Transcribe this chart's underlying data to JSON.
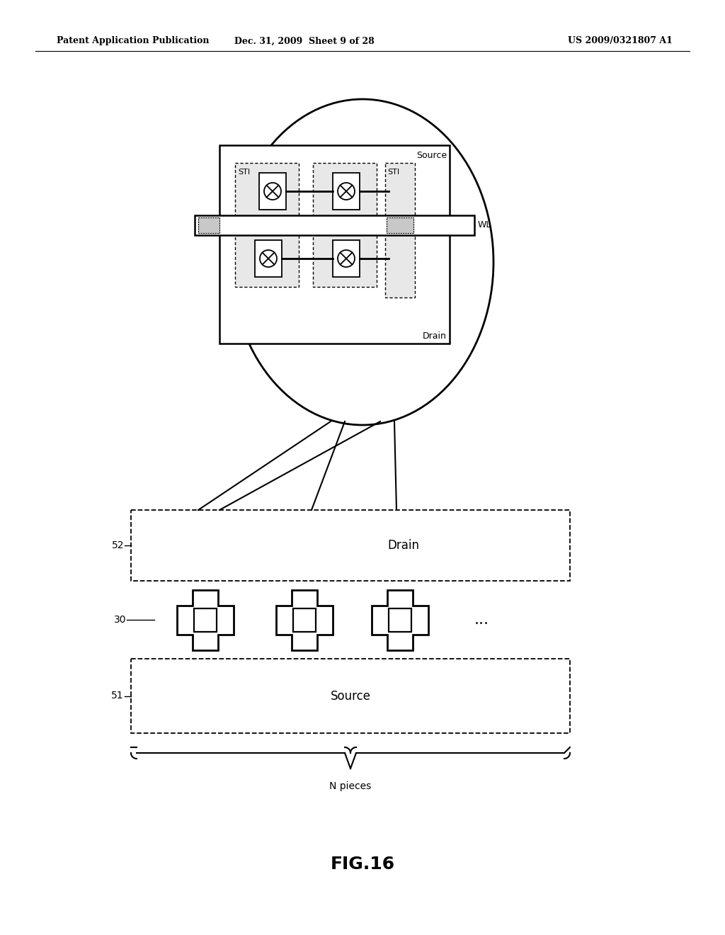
{
  "bg_color": "#ffffff",
  "header_left": "Patent Application Publication",
  "header_mid": "Dec. 31, 2009  Sheet 9 of 28",
  "header_right": "US 2009/0321807 A1",
  "fig_label": "FIG.16",
  "label_source_in_circle": "Source",
  "label_drain_in_circle": "Drain",
  "label_STI_left": "STI",
  "label_STI_right": "STI",
  "label_WL": "WL",
  "label_52": "52",
  "label_51": "51",
  "label_30": "30",
  "label_drain_box": "Drain",
  "label_source_box": "Source",
  "label_n_pieces": "N pieces",
  "dots_label": "..."
}
